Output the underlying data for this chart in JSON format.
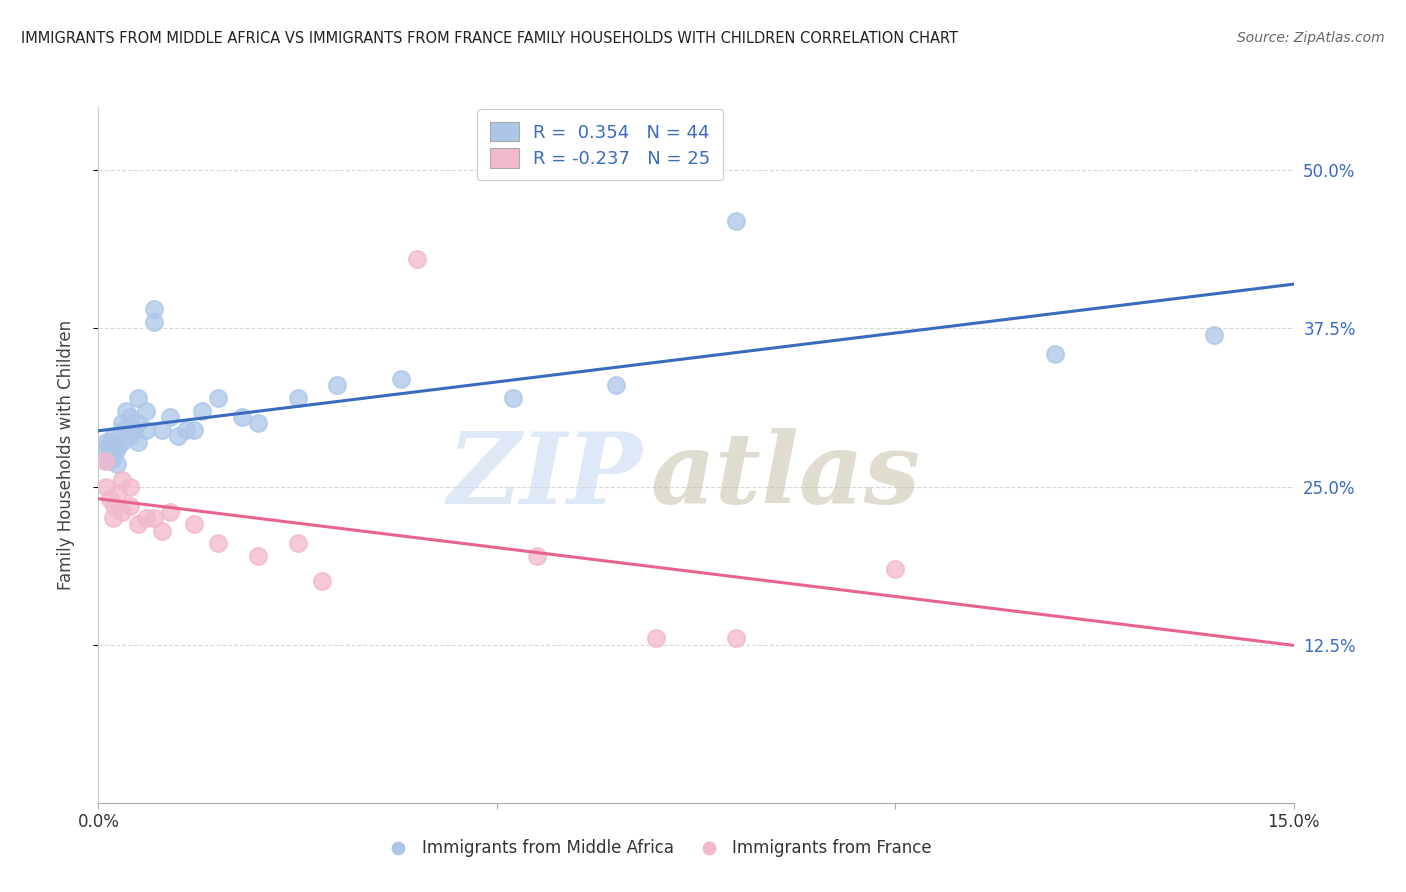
{
  "title": "IMMIGRANTS FROM MIDDLE AFRICA VS IMMIGRANTS FROM FRANCE FAMILY HOUSEHOLDS WITH CHILDREN CORRELATION CHART",
  "source": "Source: ZipAtlas.com",
  "ylabel": "Family Households with Children",
  "xlim": [
    0.0,
    0.15
  ],
  "ylim": [
    0.0,
    0.55
  ],
  "xticks": [
    0.0,
    0.05,
    0.1,
    0.15
  ],
  "xticklabels": [
    "0.0%",
    "",
    "",
    "15.0%"
  ],
  "yticks_right": [
    0.125,
    0.25,
    0.375,
    0.5
  ],
  "ytick_labels_right": [
    "12.5%",
    "25.0%",
    "37.5%",
    "50.0%"
  ],
  "legend_text1": "R =  0.354   N = 44",
  "legend_text2": "R = -0.237   N = 25",
  "blue_color": "#adc6e8",
  "pink_color": "#f2b8cb",
  "line_blue": "#3a6bbf",
  "line_pink": "#e8648a",
  "background_color": "#ffffff",
  "grid_color": "#d8d8d8",
  "blue_scatter_x": [
    0.0008,
    0.001,
    0.0012,
    0.0013,
    0.0015,
    0.0016,
    0.0017,
    0.0018,
    0.002,
    0.002,
    0.0022,
    0.0023,
    0.0025,
    0.003,
    0.003,
    0.003,
    0.0035,
    0.004,
    0.004,
    0.0045,
    0.005,
    0.005,
    0.005,
    0.006,
    0.006,
    0.007,
    0.007,
    0.008,
    0.009,
    0.01,
    0.011,
    0.012,
    0.013,
    0.015,
    0.018,
    0.02,
    0.025,
    0.03,
    0.038,
    0.052,
    0.065,
    0.08,
    0.12,
    0.14
  ],
  "blue_scatter_y": [
    0.28,
    0.285,
    0.27,
    0.275,
    0.285,
    0.278,
    0.272,
    0.29,
    0.28,
    0.283,
    0.278,
    0.268,
    0.282,
    0.295,
    0.3,
    0.285,
    0.31,
    0.29,
    0.305,
    0.295,
    0.285,
    0.3,
    0.32,
    0.31,
    0.295,
    0.38,
    0.39,
    0.295,
    0.305,
    0.29,
    0.295,
    0.295,
    0.31,
    0.32,
    0.305,
    0.3,
    0.32,
    0.33,
    0.335,
    0.32,
    0.33,
    0.46,
    0.355,
    0.37
  ],
  "pink_scatter_x": [
    0.0008,
    0.001,
    0.0015,
    0.0018,
    0.002,
    0.0025,
    0.003,
    0.003,
    0.004,
    0.004,
    0.005,
    0.006,
    0.007,
    0.008,
    0.009,
    0.012,
    0.015,
    0.02,
    0.025,
    0.028,
    0.04,
    0.055,
    0.07,
    0.08,
    0.1
  ],
  "pink_scatter_y": [
    0.27,
    0.25,
    0.24,
    0.225,
    0.235,
    0.245,
    0.23,
    0.255,
    0.235,
    0.25,
    0.22,
    0.225,
    0.225,
    0.215,
    0.23,
    0.22,
    0.205,
    0.195,
    0.205,
    0.175,
    0.43,
    0.195,
    0.13,
    0.13,
    0.185
  ]
}
